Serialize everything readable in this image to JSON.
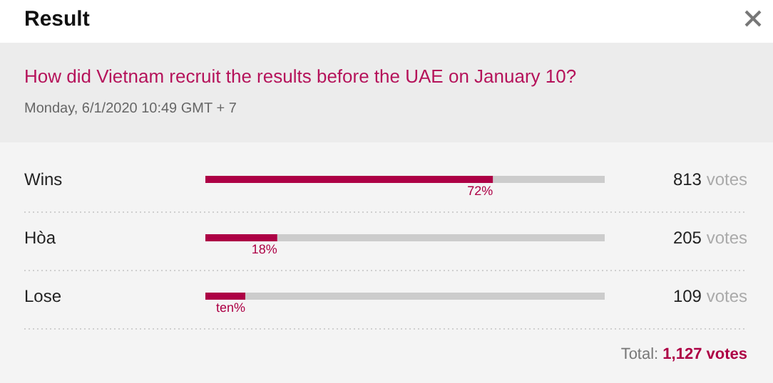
{
  "chart_data": {
    "type": "bar",
    "orientation": "horizontal",
    "title": "Result",
    "subtitle": "How did Vietnam recruit the results before the UAE on January 10?",
    "categories": [
      "Wins",
      "Hòa",
      "Lose"
    ],
    "values": [
      72,
      18,
      10
    ],
    "value_labels": [
      "72%",
      "18%",
      "ten%"
    ],
    "color": "#ad0045",
    "annotations": [
      "Monday, 6/1/2020 10:49 GMT + 7",
      "813 votes",
      "205 votes",
      "109 votes",
      "Total: 1,127 votes"
    ]
  }
}
